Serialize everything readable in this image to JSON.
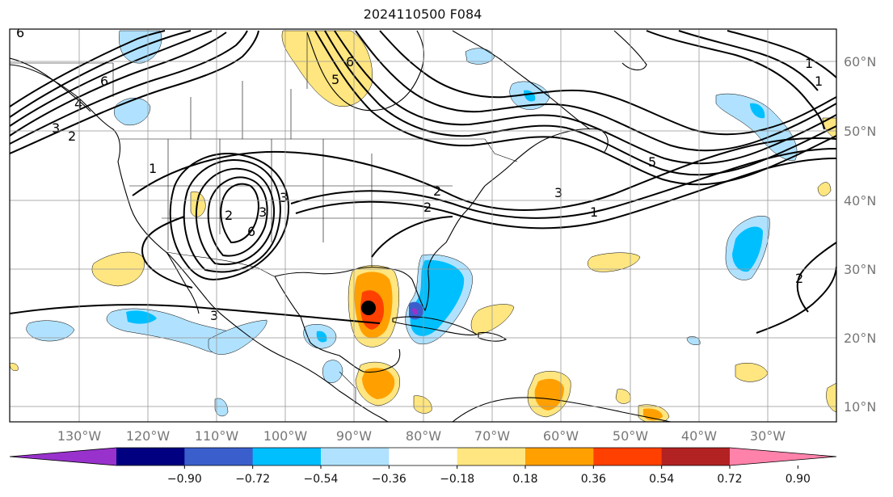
{
  "title": "2024110500 F084",
  "legend": {
    "colors": [
      "#9932cc",
      "#000080",
      "#3a5fcd",
      "#00bfff",
      "#b0e2ff",
      "#ffffff",
      "#ffe680",
      "#ffa000",
      "#ff4000",
      "#b22222",
      "#ff82ab"
    ],
    "ticks": [
      "−0.90",
      "−0.72",
      "−0.54",
      "−0.36",
      "−0.18",
      "0.18",
      "0.36",
      "0.54",
      "0.72",
      "0.90"
    ]
  },
  "axes": {
    "lon_labels": [
      "130°W",
      "120°W",
      "110°W",
      "100°W",
      "90°W",
      "80°W",
      "70°W",
      "60°W",
      "50°W",
      "40°W",
      "30°W"
    ],
    "lat_labels": [
      "60°N",
      "50°N",
      "40°N",
      "30°N",
      "20°N",
      "10°N"
    ]
  },
  "contour_labels": [
    "6",
    "6",
    "4",
    "3",
    "2",
    "1",
    "6",
    "3",
    "2",
    "6",
    "5",
    "3",
    "1",
    "1",
    "2",
    "3",
    "2",
    "1",
    "5",
    "3",
    "2"
  ],
  "storm_marker": {
    "lat": 24.5,
    "lon": -87.5
  }
}
